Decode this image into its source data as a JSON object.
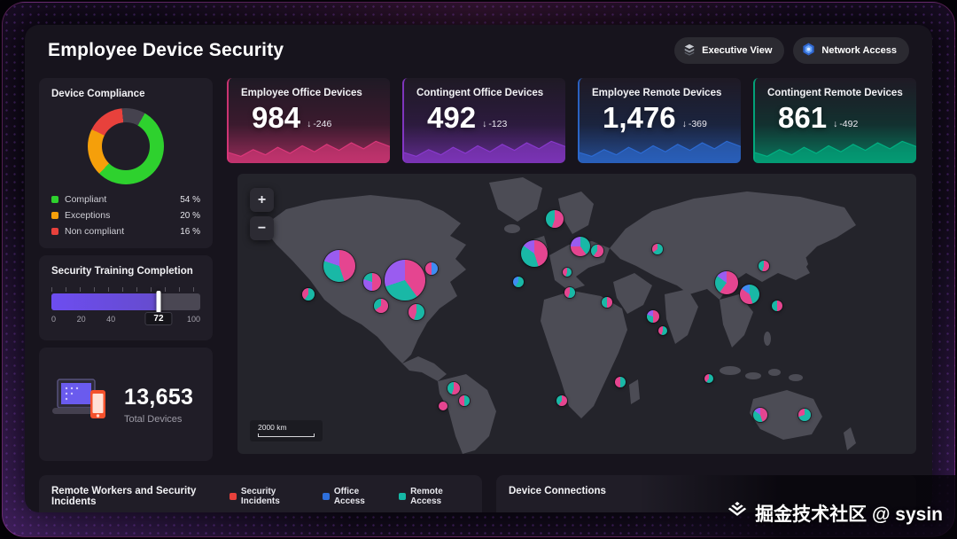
{
  "header": {
    "title": "Employee Device Security",
    "actions": [
      {
        "label": "Executive View",
        "icon": "executive-view-icon"
      },
      {
        "label": "Network Access",
        "icon": "network-access-icon"
      }
    ]
  },
  "compliance": {
    "title": "Device Compliance",
    "segments": [
      {
        "label": "Compliant",
        "value": "54 %",
        "color": "#2ed12e",
        "pct": 54
      },
      {
        "label": "Exceptions",
        "value": "20 %",
        "color": "#f59f0a",
        "pct": 20
      },
      {
        "label": "Non compliant",
        "value": "16 %",
        "color": "#e8413c",
        "pct": 16
      }
    ],
    "rest_color": "#45424e",
    "rest_pct": 10
  },
  "training": {
    "title": "Security Training Completion",
    "value": 72,
    "value_label": "72",
    "bar_color": "#6d4df0",
    "axis": [
      {
        "label": "0",
        "pos": 0
      },
      {
        "label": "20",
        "pos": 20
      },
      {
        "label": "40",
        "pos": 40
      },
      {
        "label": "100",
        "pos": 100
      }
    ]
  },
  "totals": {
    "value": "13,653",
    "label": "Total Devices"
  },
  "stat_cards": [
    {
      "title": "Employee Office Devices",
      "value": "984",
      "delta": "-246",
      "accent": "#e63a7f"
    },
    {
      "title": "Contingent Office Devices",
      "value": "492",
      "delta": "-123",
      "accent": "#8f3bd6"
    },
    {
      "title": "Employee Remote Devices",
      "value": "1,476",
      "delta": "-369",
      "accent": "#2e6fdb"
    },
    {
      "title": "Contingent Remote Devices",
      "value": "861",
      "delta": "-492",
      "accent": "#00b887"
    }
  ],
  "map": {
    "zoom_in": "+",
    "zoom_out": "−",
    "scale_label": "2000 km",
    "marker_colors": {
      "pink": "#e54590",
      "teal": "#19b8a6",
      "purple": "#9a5cf0",
      "blue": "#3f8cf3"
    },
    "markers": [
      {
        "x": 15.0,
        "y": 33.0,
        "s": 36,
        "slices": [
          [
            "pink",
            45
          ],
          [
            "teal",
            35
          ],
          [
            "purple",
            20
          ]
        ]
      },
      {
        "x": 10.4,
        "y": 43.0,
        "s": 14,
        "slices": [
          [
            "teal",
            60
          ],
          [
            "pink",
            40
          ]
        ]
      },
      {
        "x": 19.8,
        "y": 38.5,
        "s": 20,
        "slices": [
          [
            "pink",
            50
          ],
          [
            "purple",
            30
          ],
          [
            "teal",
            20
          ]
        ]
      },
      {
        "x": 24.7,
        "y": 38.0,
        "s": 46,
        "slices": [
          [
            "pink",
            40
          ],
          [
            "teal",
            30
          ],
          [
            "purple",
            30
          ]
        ]
      },
      {
        "x": 26.4,
        "y": 49.5,
        "s": 18,
        "slices": [
          [
            "teal",
            55
          ],
          [
            "pink",
            45
          ]
        ]
      },
      {
        "x": 28.6,
        "y": 34.0,
        "s": 14,
        "slices": [
          [
            "blue",
            50
          ],
          [
            "pink",
            50
          ]
        ]
      },
      {
        "x": 21.1,
        "y": 47.0,
        "s": 16,
        "slices": [
          [
            "pink",
            65
          ],
          [
            "teal",
            35
          ]
        ]
      },
      {
        "x": 31.9,
        "y": 76.5,
        "s": 14,
        "slices": [
          [
            "pink",
            55
          ],
          [
            "teal",
            45
          ]
        ]
      },
      {
        "x": 33.4,
        "y": 81.0,
        "s": 12,
        "slices": [
          [
            "teal",
            50
          ],
          [
            "pink",
            50
          ]
        ]
      },
      {
        "x": 30.3,
        "y": 83.0,
        "s": 10,
        "slices": [
          [
            "pink",
            100
          ]
        ]
      },
      {
        "x": 41.4,
        "y": 38.5,
        "s": 12,
        "slices": [
          [
            "teal",
            60
          ],
          [
            "blue",
            40
          ]
        ]
      },
      {
        "x": 43.7,
        "y": 28.5,
        "s": 30,
        "slices": [
          [
            "pink",
            45
          ],
          [
            "teal",
            40
          ],
          [
            "purple",
            15
          ]
        ]
      },
      {
        "x": 46.7,
        "y": 16.0,
        "s": 20,
        "slices": [
          [
            "pink",
            55
          ],
          [
            "teal",
            45
          ]
        ]
      },
      {
        "x": 50.5,
        "y": 26.0,
        "s": 22,
        "slices": [
          [
            "teal",
            40
          ],
          [
            "pink",
            35
          ],
          [
            "purple",
            25
          ]
        ]
      },
      {
        "x": 53.0,
        "y": 27.5,
        "s": 14,
        "slices": [
          [
            "pink",
            60
          ],
          [
            "teal",
            40
          ]
        ]
      },
      {
        "x": 48.5,
        "y": 35.0,
        "s": 10,
        "slices": [
          [
            "teal",
            55
          ],
          [
            "pink",
            45
          ]
        ]
      },
      {
        "x": 49.0,
        "y": 42.5,
        "s": 12,
        "slices": [
          [
            "teal",
            55
          ],
          [
            "pink",
            45
          ]
        ]
      },
      {
        "x": 54.4,
        "y": 46.0,
        "s": 12,
        "slices": [
          [
            "pink",
            50
          ],
          [
            "teal",
            50
          ]
        ]
      },
      {
        "x": 61.9,
        "y": 27.0,
        "s": 12,
        "slices": [
          [
            "teal",
            65
          ],
          [
            "pink",
            35
          ]
        ]
      },
      {
        "x": 61.2,
        "y": 51.0,
        "s": 14,
        "slices": [
          [
            "pink",
            50
          ],
          [
            "teal",
            30
          ],
          [
            "purple",
            20
          ]
        ]
      },
      {
        "x": 62.7,
        "y": 56.0,
        "s": 10,
        "slices": [
          [
            "teal",
            55
          ],
          [
            "pink",
            45
          ]
        ]
      },
      {
        "x": 72.1,
        "y": 39.0,
        "s": 26,
        "slices": [
          [
            "pink",
            60
          ],
          [
            "teal",
            25
          ],
          [
            "purple",
            15
          ]
        ]
      },
      {
        "x": 75.5,
        "y": 43.0,
        "s": 22,
        "slices": [
          [
            "teal",
            45
          ],
          [
            "pink",
            40
          ],
          [
            "blue",
            15
          ]
        ]
      },
      {
        "x": 77.5,
        "y": 33.0,
        "s": 12,
        "slices": [
          [
            "pink",
            55
          ],
          [
            "teal",
            45
          ]
        ]
      },
      {
        "x": 79.5,
        "y": 47.0,
        "s": 12,
        "slices": [
          [
            "pink",
            50
          ],
          [
            "teal",
            50
          ]
        ]
      },
      {
        "x": 56.4,
        "y": 74.5,
        "s": 12,
        "slices": [
          [
            "teal",
            50
          ],
          [
            "pink",
            50
          ]
        ]
      },
      {
        "x": 47.8,
        "y": 81.0,
        "s": 12,
        "slices": [
          [
            "pink",
            60
          ],
          [
            "teal",
            40
          ]
        ]
      },
      {
        "x": 69.5,
        "y": 73.0,
        "s": 10,
        "slices": [
          [
            "teal",
            60
          ],
          [
            "pink",
            40
          ]
        ]
      },
      {
        "x": 77.0,
        "y": 86.0,
        "s": 16,
        "slices": [
          [
            "pink",
            45
          ],
          [
            "teal",
            40
          ],
          [
            "purple",
            15
          ]
        ]
      },
      {
        "x": 83.6,
        "y": 86.0,
        "s": 14,
        "slices": [
          [
            "teal",
            70
          ],
          [
            "pink",
            30
          ]
        ]
      }
    ]
  },
  "bottom_left": {
    "title": "Remote Workers and Security Incidents",
    "legend": [
      {
        "label": "Security Incidents",
        "color": "#e8413c"
      },
      {
        "label": "Office Access",
        "color": "#2e6fdb"
      },
      {
        "label": "Remote Access",
        "color": "#15b8a6"
      }
    ]
  },
  "bottom_right": {
    "title": "Device Connections"
  },
  "watermark": "掘金技术社区 @ sysin"
}
